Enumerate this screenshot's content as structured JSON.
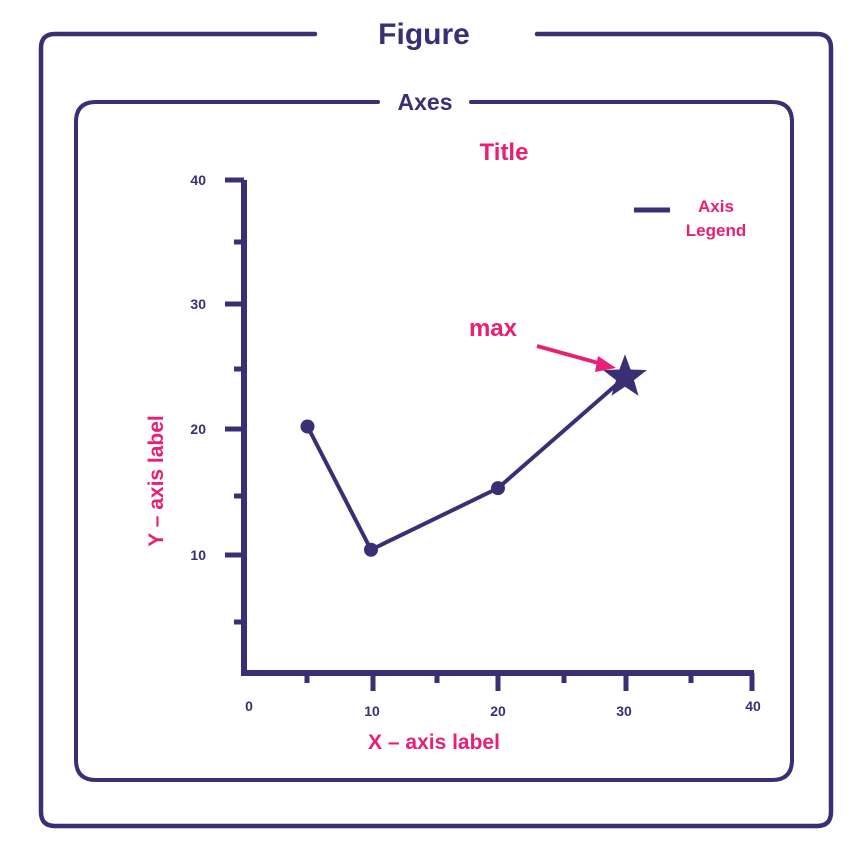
{
  "colors": {
    "ink": "#3a2f74",
    "accent": "#e91e74",
    "background": "#ffffff"
  },
  "figure": {
    "label": "Figure"
  },
  "axes": {
    "label": "Axes"
  },
  "chart_data": {
    "type": "line",
    "title": "Title",
    "xlabel": "X – axis label",
    "ylabel": "Y – axis label",
    "xlim": [
      0,
      40
    ],
    "ylim": [
      0,
      40
    ],
    "x_ticks": [
      "0",
      "10",
      "20",
      "30",
      "40"
    ],
    "y_ticks": [
      "10",
      "20",
      "30",
      "40"
    ],
    "series": [
      {
        "name": "Axis Legend",
        "x": [
          5,
          10,
          20,
          30
        ],
        "y": [
          20,
          10,
          15,
          24
        ],
        "markers": [
          "circle",
          "circle",
          "circle",
          "star"
        ]
      }
    ],
    "legend": {
      "position": "top-right",
      "lines": [
        "Axis",
        "Legend"
      ]
    },
    "annotation": {
      "text": "max",
      "x": 30,
      "y": 24
    }
  }
}
